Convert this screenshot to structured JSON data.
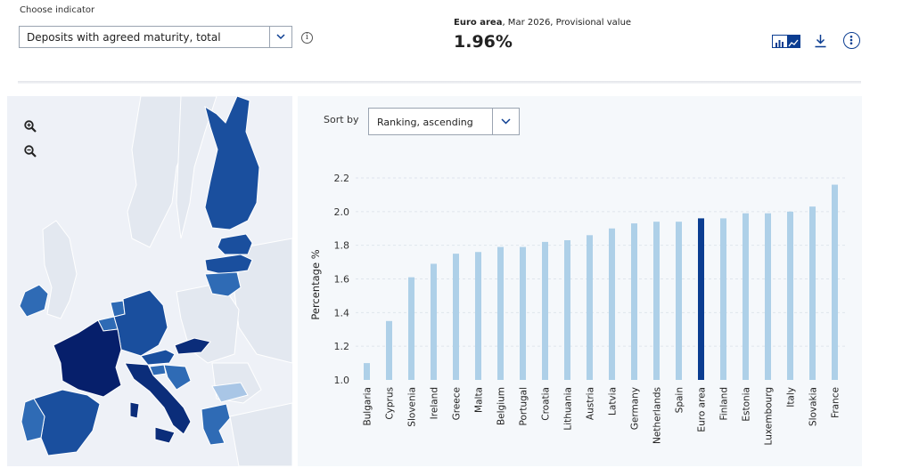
{
  "indicator": {
    "label": "Choose indicator",
    "selected": "Deposits with agreed maturity, total",
    "info_icon": "info-icon"
  },
  "headline": {
    "area": "Euro area",
    "detail": ", Mar 2026, Provisional value",
    "value": "1.96%"
  },
  "toolbar": {
    "toggle_icon": "bar-line-toggle-icon",
    "download_icon": "download-icon",
    "more_icon": "more-options-icon"
  },
  "map": {
    "zoom_in_icon": "zoom-in-icon",
    "zoom_out_icon": "zoom-out-icon",
    "colors": {
      "light": "#2f6bb5",
      "mid": "#1a4f9e",
      "dark": "#0b2d7a",
      "darkest": "#061f6b",
      "land": "#e9edf4",
      "nonmember": "#e3e8f0",
      "sea": "#f0f3f8"
    }
  },
  "sort": {
    "label": "Sort by",
    "selected": "Ranking, ascending"
  },
  "chart_data": {
    "type": "bar",
    "ylabel": "Percentage %",
    "ylim": [
      1.0,
      2.2
    ],
    "yticks": [
      "1.0",
      "1.2",
      "1.4",
      "1.6",
      "1.8",
      "2.0",
      "2.2"
    ],
    "grid": true,
    "bar_color": "#aed0e8",
    "highlight_color": "#0b3d91",
    "highlight": "Euro area",
    "categories": [
      "Bulgaria",
      "Cyprus",
      "Slovenia",
      "Ireland",
      "Greece",
      "Malta",
      "Belgium",
      "Portugal",
      "Croatia",
      "Lithuania",
      "Austria",
      "Latvia",
      "Germany",
      "Netherlands",
      "Spain",
      "Euro area",
      "Finland",
      "Estonia",
      "Luxembourg",
      "Italy",
      "Slovakia",
      "France"
    ],
    "values": [
      1.1,
      1.35,
      1.61,
      1.69,
      1.75,
      1.76,
      1.79,
      1.79,
      1.82,
      1.83,
      1.86,
      1.9,
      1.93,
      1.94,
      1.94,
      1.96,
      1.96,
      1.99,
      1.99,
      2.0,
      2.03,
      2.16
    ]
  }
}
